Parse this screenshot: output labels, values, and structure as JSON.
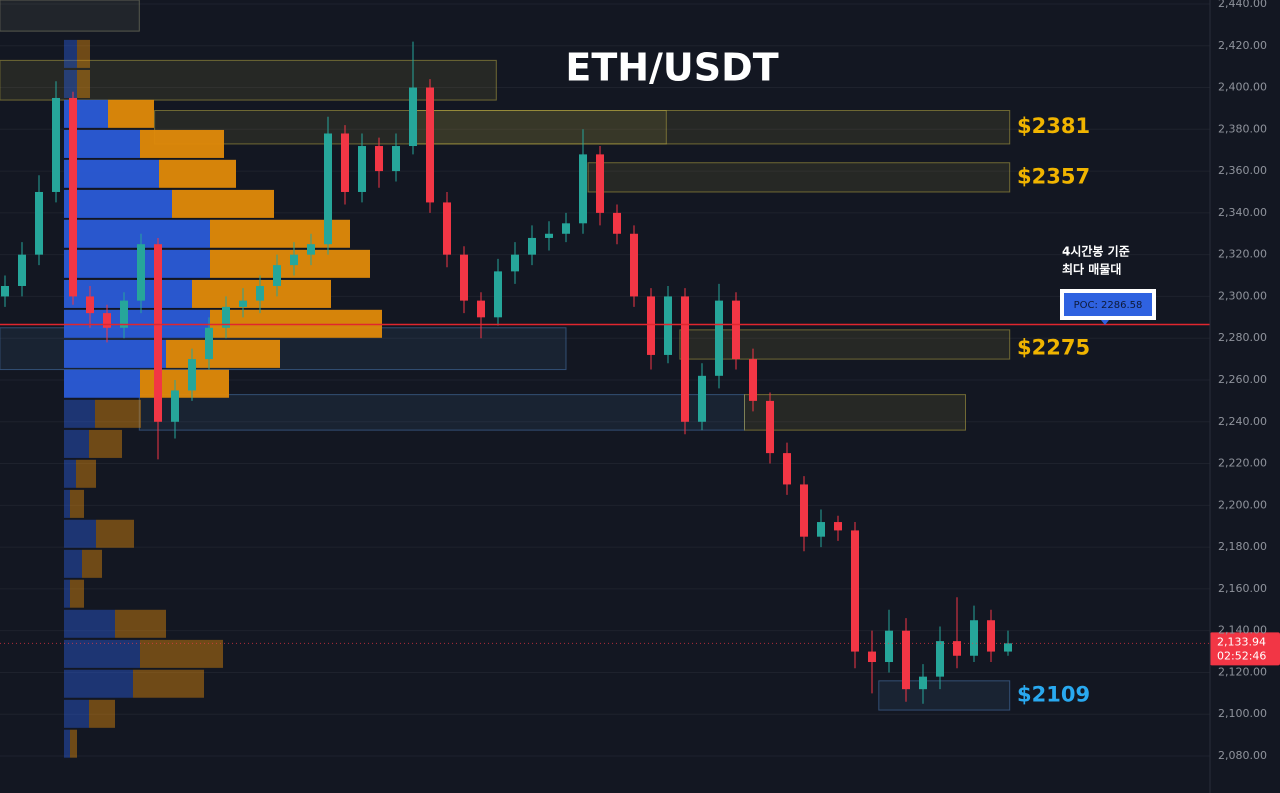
{
  "chart_data": {
    "type": "candlestick",
    "title": "ETH/USDT",
    "ylim": [
      2062.3,
      2441.9
    ],
    "yticks": [
      {
        "value": 2440,
        "label": "2,440.00"
      },
      {
        "value": 2420,
        "label": "2,420.00"
      },
      {
        "value": 2400,
        "label": "2,400.00"
      },
      {
        "value": 2380,
        "label": "2,380.00"
      },
      {
        "value": 2360,
        "label": "2,360.00"
      },
      {
        "value": 2340,
        "label": "2,340.00"
      },
      {
        "value": 2320,
        "label": "2,320.00"
      },
      {
        "value": 2300,
        "label": "2,300.00"
      },
      {
        "value": 2280,
        "label": "2,280.00"
      },
      {
        "value": 2260,
        "label": "2,260.00"
      },
      {
        "value": 2240,
        "label": "2,240.00"
      },
      {
        "value": 2220,
        "label": "2,220.00"
      },
      {
        "value": 2200,
        "label": "2,200.00"
      },
      {
        "value": 2180,
        "label": "2,180.00"
      },
      {
        "value": 2160,
        "label": "2,160.00"
      },
      {
        "value": 2140,
        "label": "2,140.00"
      },
      {
        "value": 2120,
        "label": "2,120.00"
      },
      {
        "value": 2100,
        "label": "2,100.00"
      },
      {
        "value": 2080,
        "label": "2,080.00"
      }
    ],
    "up_color": "#26a69a",
    "down_color": "#f23645",
    "candles": {
      "open": [
        2300,
        2305,
        2320,
        2350,
        2395,
        2300,
        2292,
        2285,
        2298,
        2325,
        2240,
        2255,
        2270,
        2285,
        2295,
        2298,
        2305,
        2315,
        2320,
        2325,
        2378,
        2350,
        2372,
        2360,
        2372,
        2400,
        2345,
        2320,
        2298,
        2290,
        2312,
        2320,
        2328,
        2330,
        2335,
        2368,
        2340,
        2330,
        2300,
        2272,
        2300,
        2240,
        2262,
        2298,
        2270,
        2250,
        2225,
        2210,
        2185,
        2192,
        2188,
        2130,
        2125,
        2140,
        2112,
        2118,
        2135,
        2128,
        2145,
        2130
      ],
      "high": [
        2310,
        2326,
        2358,
        2403,
        2398,
        2305,
        2296,
        2302,
        2330,
        2328,
        2260,
        2275,
        2290,
        2300,
        2304,
        2310,
        2320,
        2326,
        2330,
        2386,
        2382,
        2378,
        2376,
        2378,
        2422,
        2404,
        2350,
        2324,
        2302,
        2318,
        2326,
        2334,
        2336,
        2340,
        2380,
        2372,
        2344,
        2334,
        2304,
        2305,
        2304,
        2268,
        2306,
        2302,
        2275,
        2254,
        2230,
        2214,
        2198,
        2195,
        2192,
        2140,
        2150,
        2146,
        2124,
        2142,
        2156,
        2152,
        2150,
        2140
      ],
      "low": [
        2295,
        2300,
        2315,
        2345,
        2296,
        2285,
        2278,
        2280,
        2292,
        2222,
        2232,
        2250,
        2265,
        2280,
        2290,
        2292,
        2300,
        2310,
        2315,
        2320,
        2344,
        2345,
        2352,
        2355,
        2368,
        2340,
        2314,
        2292,
        2280,
        2286,
        2306,
        2315,
        2322,
        2326,
        2330,
        2334,
        2325,
        2295,
        2265,
        2268,
        2234,
        2236,
        2256,
        2265,
        2245,
        2220,
        2205,
        2178,
        2180,
        2183,
        2122,
        2110,
        2120,
        2106,
        2105,
        2112,
        2122,
        2125,
        2125,
        2128
      ],
      "close": [
        2305,
        2320,
        2350,
        2395,
        2300,
        2292,
        2285,
        2298,
        2325,
        2240,
        2255,
        2270,
        2285,
        2295,
        2298,
        2305,
        2315,
        2320,
        2325,
        2378,
        2350,
        2372,
        2360,
        2372,
        2400,
        2345,
        2320,
        2298,
        2290,
        2312,
        2320,
        2328,
        2330,
        2335,
        2368,
        2340,
        2330,
        2300,
        2272,
        2300,
        2240,
        2262,
        2298,
        2270,
        2250,
        2225,
        2210,
        2185,
        2192,
        2188,
        2130,
        2125,
        2140,
        2112,
        2118,
        2135,
        2128,
        2145,
        2130,
        2133.94
      ]
    },
    "volume_profile": {
      "buy_color": "#2a5bd7",
      "sell_color": "#e08a0a",
      "value_area": [
        2250,
        2394
      ],
      "price": [
        2416.1,
        2401.7,
        2387.4,
        2373.0,
        2358.7,
        2344.3,
        2330.0,
        2315.6,
        2301.2,
        2286.9,
        2272.5,
        2258.2,
        2243.8,
        2229.4,
        2215.1,
        2200.7,
        2186.4,
        2172.0,
        2157.7,
        2143.3,
        2128.9,
        2114.6,
        2100.2,
        2085.9
      ],
      "buy": [
        13,
        13,
        44,
        76,
        95,
        108,
        146,
        146,
        128,
        146,
        102,
        76,
        31,
        25,
        12,
        6,
        32,
        18,
        6,
        51,
        76,
        69,
        25,
        6
      ],
      "sell": [
        13,
        13,
        46,
        84,
        77,
        102,
        140,
        160,
        139,
        172,
        114,
        89,
        46,
        33,
        20,
        14,
        38,
        20,
        14,
        51,
        83,
        71,
        26,
        7
      ]
    },
    "zones": [
      {
        "start": -0.3,
        "end": 7.9,
        "low": 2427,
        "high": 2441.9,
        "color": "#8a8a70"
      },
      {
        "start": -0.3,
        "end": 28.9,
        "low": 2394,
        "high": 2413,
        "color": "#b5a642"
      },
      {
        "start": 8.8,
        "end": 59.1,
        "low": 2373,
        "high": 2389,
        "color": "#b5a642"
      },
      {
        "start": 24.1,
        "end": 38.9,
        "low": 2373,
        "high": 2389,
        "color": "#b5a642"
      },
      {
        "start": 34.3,
        "end": 59.1,
        "low": 2350,
        "high": 2364,
        "color": "#b5a642"
      },
      {
        "start": -0.3,
        "end": 33,
        "low": 2265,
        "high": 2285,
        "color": "#4a78b0"
      },
      {
        "start": 39.7,
        "end": 59.1,
        "low": 2270,
        "high": 2284,
        "color": "#b5a642"
      },
      {
        "start": 7.9,
        "end": 43.5,
        "low": 2236,
        "high": 2253,
        "color": "#4a78b0"
      },
      {
        "start": 43.5,
        "end": 56.5,
        "low": 2236,
        "high": 2253,
        "color": "#b5a642"
      },
      {
        "start": 51.4,
        "end": 59.1,
        "low": 2102,
        "high": 2116,
        "color": "#4a78b0"
      }
    ],
    "levels": [
      {
        "value": 2381,
        "label": "$2381",
        "color": "#f0b400"
      },
      {
        "value": 2357,
        "label": "$2357",
        "color": "#f0b400"
      },
      {
        "value": 2275,
        "label": "$2275",
        "color": "#f0b400"
      },
      {
        "value": 2109,
        "label": "$2109",
        "color": "#29a9f0"
      }
    ],
    "poc": {
      "value": 2286.58,
      "label": "POC: 2286.58",
      "color": "#e0262e"
    },
    "annotation": [
      "4시간봉 기준",
      "최다 매물대"
    ],
    "last_price": {
      "value": 2133.94,
      "label": "2,133.94",
      "timer": "02:52:46"
    }
  }
}
